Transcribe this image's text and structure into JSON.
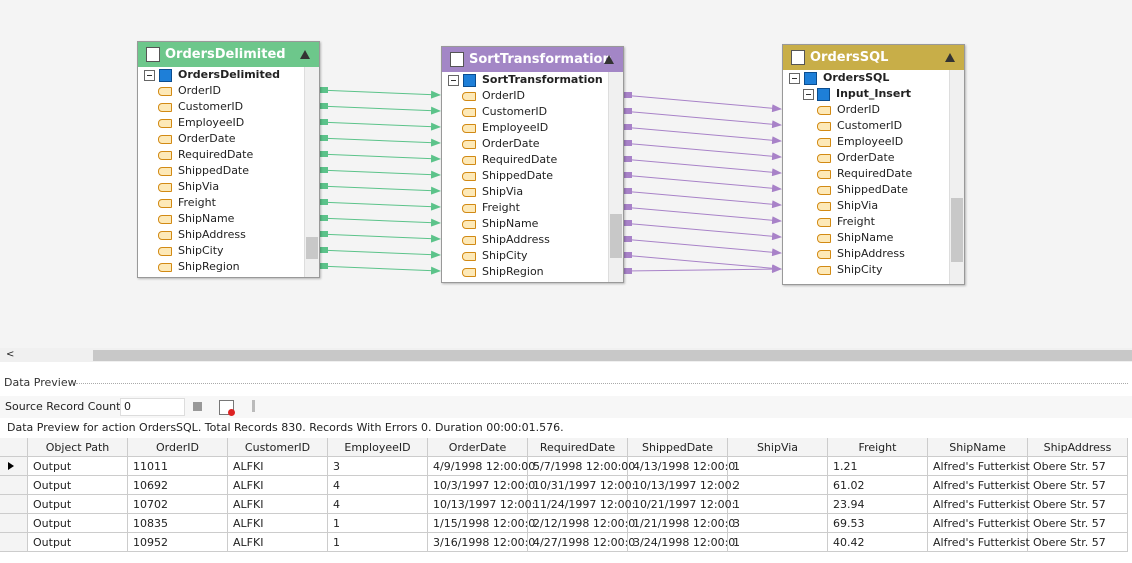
{
  "nodes": [
    {
      "title": "OrdersDelimited",
      "root": "OrdersDelimited",
      "fields": [
        "OrderID",
        "CustomerID",
        "EmployeeID",
        "OrderDate",
        "RequiredDate",
        "ShippedDate",
        "ShipVia",
        "Freight",
        "ShipName",
        "ShipAddress",
        "ShipCity",
        "ShipRegion"
      ]
    },
    {
      "title": "SortTransformation",
      "root": "SortTransformation",
      "fields": [
        "OrderID",
        "CustomerID",
        "EmployeeID",
        "OrderDate",
        "RequiredDate",
        "ShippedDate",
        "ShipVia",
        "Freight",
        "ShipName",
        "ShipAddress",
        "ShipCity",
        "ShipRegion"
      ]
    },
    {
      "title": "OrdersSQL",
      "root": "OrdersSQL",
      "sub": "Input_Insert",
      "fields": [
        "OrderID",
        "CustomerID",
        "EmployeeID",
        "OrderDate",
        "RequiredDate",
        "ShippedDate",
        "ShipVia",
        "Freight",
        "ShipName",
        "ShipAddress",
        "ShipCity"
      ]
    }
  ],
  "preview": {
    "title": "Data Preview",
    "source_label": "Source Record Count",
    "source_value": "0",
    "status": "Data Preview for action OrdersSQL. Total Records 830. Records With Errors 0. Duration 00:00:01.576.",
    "columns": [
      "Object Path",
      "OrderID",
      "CustomerID",
      "EmployeeID",
      "OrderDate",
      "RequiredDate",
      "ShippedDate",
      "ShipVia",
      "Freight",
      "ShipName",
      "ShipAddress"
    ],
    "rows": [
      [
        "Output",
        "11011",
        "ALFKI",
        "3",
        "4/9/1998 12:00:00",
        "5/7/1998 12:00:00",
        "4/13/1998 12:00:0",
        "1",
        "1.21",
        "Alfred's Futterkist",
        "Obere Str. 57"
      ],
      [
        "Output",
        "10692",
        "ALFKI",
        "4",
        "10/3/1997 12:00:0",
        "10/31/1997 12:00:",
        "10/13/1997 12:00:",
        "2",
        "61.02",
        "Alfred's Futterkist",
        "Obere Str. 57"
      ],
      [
        "Output",
        "10702",
        "ALFKI",
        "4",
        "10/13/1997 12:00:",
        "11/24/1997 12:00:",
        "10/21/1997 12:00:",
        "1",
        "23.94",
        "Alfred's Futterkist",
        "Obere Str. 57"
      ],
      [
        "Output",
        "10835",
        "ALFKI",
        "1",
        "1/15/1998 12:00:0",
        "2/12/1998 12:00:0",
        "1/21/1998 12:00:0",
        "3",
        "69.53",
        "Alfred's Futterkist",
        "Obere Str. 57"
      ],
      [
        "Output",
        "10952",
        "ALFKI",
        "1",
        "3/16/1998 12:00:0",
        "4/27/1998 12:00:0",
        "3/24/1998 12:00:0",
        "1",
        "40.42",
        "Alfred's Futterkist",
        "Obere Str. 57"
      ]
    ]
  }
}
